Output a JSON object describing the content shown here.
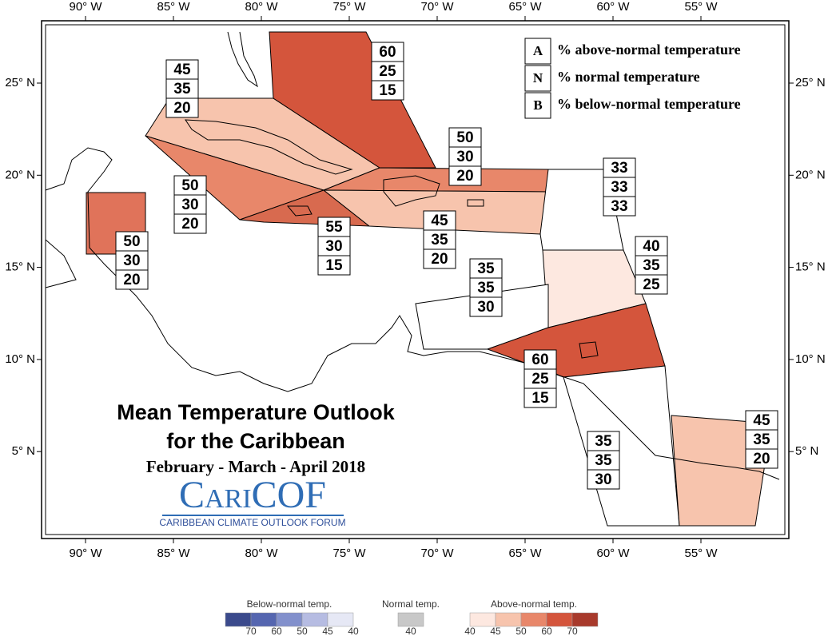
{
  "title": "Mean Temperature Outlook",
  "title_line2": "for the Caribbean",
  "period": "February - March - April 2018",
  "logo": "CariCOF",
  "logo_subtitle": "CARIBBEAN CLIMATE OUTLOOK FORUM",
  "key": [
    {
      "letter": "A",
      "text": "% above-normal temperature"
    },
    {
      "letter": "N",
      "text": "% normal temperature"
    },
    {
      "letter": "B",
      "text": "% below-normal temperature"
    }
  ],
  "lon_labels": [
    "90° W",
    "85° W",
    "80° W",
    "75° W",
    "70° W",
    "65° W",
    "60° W",
    "55° W"
  ],
  "lat_labels": [
    "25° N",
    "20° N",
    "15° N",
    "10° N",
    "5° N"
  ],
  "regions": [
    {
      "values": [
        45,
        35,
        20
      ],
      "color": "#f7c4ad"
    },
    {
      "values": [
        60,
        25,
        15
      ],
      "color": "#d4553c"
    },
    {
      "values": [
        50,
        30,
        20
      ],
      "color": "#e8876a"
    },
    {
      "values": [
        55,
        30,
        15
      ],
      "color": "#d86a4f"
    },
    {
      "values": [
        50,
        30,
        20
      ],
      "color": "#e8876a"
    },
    {
      "values": [
        45,
        35,
        20
      ],
      "color": "#f7c4ad"
    },
    {
      "values": [
        50,
        30,
        20
      ],
      "color": "#e0735a"
    },
    {
      "values": [
        33,
        33,
        33
      ],
      "color": "#ffffff"
    },
    {
      "values": [
        40,
        35,
        25
      ],
      "color": "#fde8e0"
    },
    {
      "values": [
        35,
        35,
        30
      ],
      "color": "#ffffff"
    },
    {
      "values": [
        60,
        25,
        15
      ],
      "color": "#d4553c"
    },
    {
      "values": [
        35,
        35,
        30
      ],
      "color": "#ffffff"
    },
    {
      "values": [
        45,
        35,
        20
      ],
      "color": "#f7c4ad"
    }
  ],
  "colorbar": {
    "below": {
      "title": "Below-normal temp.",
      "ticks": [
        70,
        60,
        50,
        45,
        40
      ],
      "colors": [
        "#3b4a8c",
        "#5566b0",
        "#8290cc",
        "#b6bce2",
        "#e6e8f5"
      ]
    },
    "normal": {
      "title": "Normal temp.",
      "ticks": [
        40
      ],
      "colors": [
        "#c8c8c8"
      ]
    },
    "above": {
      "title": "Above-normal temp.",
      "ticks": [
        40,
        45,
        50,
        60,
        70
      ],
      "colors": [
        "#fde8e0",
        "#f7c4ad",
        "#e8876a",
        "#d4553c",
        "#a83a2c"
      ]
    }
  }
}
